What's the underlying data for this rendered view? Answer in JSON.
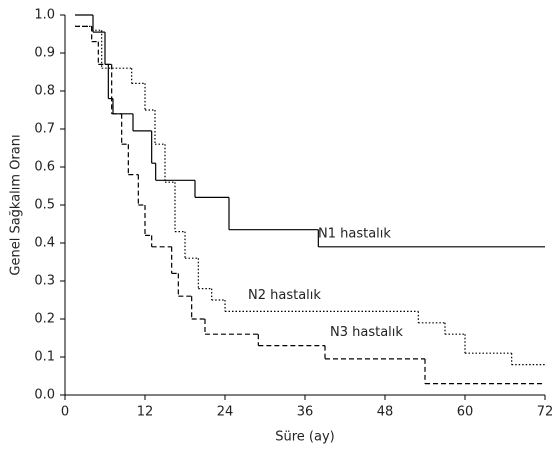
{
  "chart_data": {
    "type": "step",
    "xlabel": "Süre (ay)",
    "ylabel": "Genel Sağkalım Oranı",
    "xlim": [
      0,
      72
    ],
    "xticks": [
      0,
      12,
      24,
      36,
      48,
      60,
      72
    ],
    "ylim": [
      0,
      1
    ],
    "yticks": [
      {
        "value": 0,
        "label": "0.0"
      },
      {
        "value": 0.1,
        "label": "0.1"
      },
      {
        "value": 0.2,
        "label": "0.2"
      },
      {
        "value": 0.3,
        "label": "0.3"
      },
      {
        "value": 0.4,
        "label": "0.4"
      },
      {
        "value": 0.5,
        "label": "0.5"
      },
      {
        "value": 0.6,
        "label": "0.6"
      },
      {
        "value": 0.7,
        "label": "0.7"
      },
      {
        "value": 0.8,
        "label": "0.8"
      },
      {
        "value": 0.9,
        "label": "0.9"
      },
      {
        "value": 1,
        "label": "1.0"
      }
    ],
    "series": [
      {
        "name": "N1 hastalık",
        "color": "#000000",
        "dash": "solid",
        "x": [
          1.5,
          4.2,
          6,
          6.5,
          7.2,
          10.2,
          13,
          13.6,
          19.5,
          24.6,
          38,
          72
        ],
        "values": [
          1.0,
          0.955,
          0.87,
          0.78,
          0.74,
          0.695,
          0.61,
          0.565,
          0.52,
          0.435,
          0.39,
          0.39
        ]
      },
      {
        "name": "N2 hastalık",
        "color": "#000000",
        "dash": "dotted",
        "x": [
          1.5,
          4,
          5.5,
          10,
          12,
          13.5,
          15,
          16.5,
          18,
          20,
          22,
          24,
          53,
          57,
          60,
          67,
          72
        ],
        "values": [
          0.97,
          0.96,
          0.86,
          0.82,
          0.75,
          0.66,
          0.56,
          0.43,
          0.36,
          0.28,
          0.25,
          0.22,
          0.19,
          0.16,
          0.11,
          0.08,
          0.08
        ]
      },
      {
        "name": "N3 hastalık",
        "color": "#000000",
        "dash": "dashed",
        "x": [
          1.5,
          4,
          5,
          7,
          8.5,
          9.5,
          11,
          12,
          13,
          16,
          17,
          19,
          21,
          29,
          39,
          54,
          72
        ],
        "values": [
          0.97,
          0.93,
          0.87,
          0.74,
          0.66,
          0.58,
          0.5,
          0.42,
          0.39,
          0.32,
          0.26,
          0.2,
          0.16,
          0.13,
          0.095,
          0.03,
          0.03
        ]
      }
    ]
  }
}
